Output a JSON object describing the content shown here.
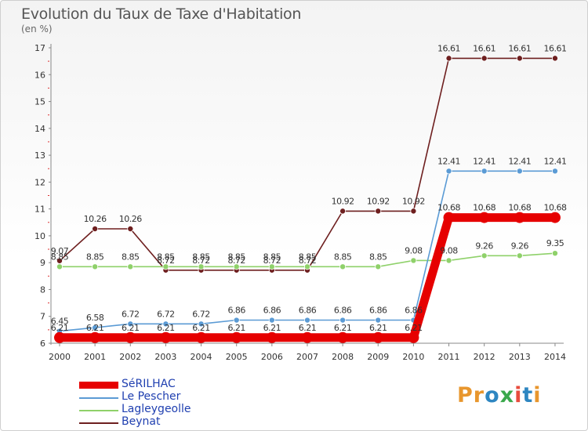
{
  "title": "Evolution du Taux de Taxe d'Habitation",
  "subtitle": "(en %)",
  "logo": {
    "text": "Proxiti",
    "letters": [
      {
        "ch": "P",
        "color": "#e8962d"
      },
      {
        "ch": "r",
        "color": "#e8962d"
      },
      {
        "ch": "o",
        "color": "#2e86c1"
      },
      {
        "ch": "x",
        "color": "#3aa84b"
      },
      {
        "ch": "i",
        "color": "#e84c3d"
      },
      {
        "ch": "t",
        "color": "#2e86c1"
      },
      {
        "ch": "i",
        "color": "#e8962d"
      }
    ]
  },
  "chart_data": {
    "type": "line",
    "title": "Evolution du Taux de Taxe d'Habitation",
    "ylabel": "(en %)",
    "xlabel": "",
    "ylim": [
      6,
      17
    ],
    "y_ticks": [
      6,
      7,
      8,
      9,
      10,
      11,
      12,
      13,
      14,
      15,
      16,
      17
    ],
    "categories": [
      "2000",
      "2001",
      "2002",
      "2003",
      "2004",
      "2005",
      "2006",
      "2007",
      "2008",
      "2009",
      "2010",
      "2011",
      "2012",
      "2013",
      "2014"
    ],
    "grid": false,
    "legend_position": "bottom-left",
    "series": [
      {
        "name": "SéRILHAC",
        "color": "#e60000",
        "values": [
          6.21,
          6.21,
          6.21,
          6.21,
          6.21,
          6.21,
          6.21,
          6.21,
          6.21,
          6.21,
          6.21,
          10.68,
          10.68,
          10.68,
          10.68
        ],
        "labels": [
          "6.21",
          "6.21",
          "6.21",
          "6.21",
          "6.21",
          "6.21",
          "6.21",
          "6.21",
          "6.21",
          "6.21",
          "6.21",
          "10.68",
          "10.68",
          "10.68",
          "10.68"
        ]
      },
      {
        "name": "Le Pescher",
        "color": "#5b9bd5",
        "values": [
          6.45,
          6.58,
          6.72,
          6.72,
          6.72,
          6.86,
          6.86,
          6.86,
          6.86,
          6.86,
          6.86,
          12.41,
          12.41,
          12.41,
          12.41
        ],
        "labels": [
          "6.45",
          "6.58",
          "6.72",
          "6.72",
          "6.72",
          "6.86",
          "6.86",
          "6.86",
          "6.86",
          "6.86",
          "6.86",
          "12.41",
          "12.41",
          "12.41",
          "12.41"
        ]
      },
      {
        "name": "Lagleygeolle",
        "color": "#8fd16a",
        "values": [
          8.85,
          8.85,
          8.85,
          8.85,
          8.85,
          8.85,
          8.85,
          8.85,
          8.85,
          8.85,
          9.08,
          9.08,
          9.26,
          9.26,
          9.35
        ],
        "labels": [
          "8.85",
          "8.85",
          "8.85",
          "8.85",
          "8.85",
          "8.85",
          "8.85",
          "8.85",
          "8.85",
          "8.85",
          "9.08",
          "9.08",
          "9.26",
          "9.26",
          "9.35"
        ]
      },
      {
        "name": "Beynat",
        "color": "#6e1f1f",
        "values": [
          9.07,
          10.26,
          10.26,
          8.72,
          8.72,
          8.72,
          8.72,
          8.72,
          10.92,
          10.92,
          10.92,
          16.61,
          16.61,
          16.61,
          16.61
        ],
        "labels": [
          "9.07",
          "10.26",
          "10.26",
          "8.72",
          "8.72",
          "8.72",
          "8.72",
          "8.72",
          "10.92",
          "10.92",
          "10.92",
          "16.61",
          "16.61",
          "16.61",
          "16.61"
        ]
      }
    ]
  }
}
